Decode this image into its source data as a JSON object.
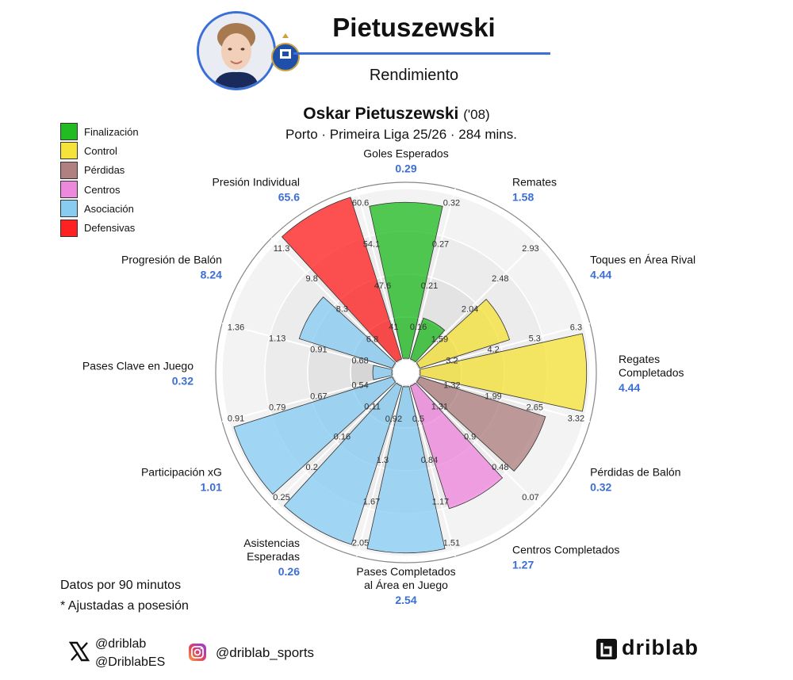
{
  "header": {
    "name": "Pietuszewski",
    "subtitle": "Rendimiento",
    "player_full": "Oskar Pietuszewski",
    "player_year": "('08)",
    "team_line": "Porto · Primeira Liga 25/26 · 284 mins."
  },
  "legend": [
    {
      "label": "Finalización",
      "color": "#22bb22"
    },
    {
      "label": "Control",
      "color": "#f5e23a"
    },
    {
      "label": "Pérdidas",
      "color": "#b08080"
    },
    {
      "label": "Centros",
      "color": "#ee88dd"
    },
    {
      "label": "Asociación",
      "color": "#88ccf2"
    },
    {
      "label": "Defensivas",
      "color": "#ff2222"
    }
  ],
  "notes": {
    "per90": "Datos por 90 minutos",
    "adjusted": "* Ajustadas a posesión"
  },
  "footer": {
    "x_handle_1": "@driblab",
    "x_handle_2": "@DriblabES",
    "instagram": "@driblab_sports",
    "brand": "driblab"
  },
  "chart_data": {
    "type": "polar-bar",
    "categories": [
      "Goles Esperados",
      "Remates",
      "Toques en Área Rival",
      "Regates Completados",
      "Pérdidas de Balón",
      "Centros Completados",
      "Pases Completados al Área en Juego",
      "Asistencias Esperadas",
      "Participación xG",
      "Pases Clave en Juego",
      "Progresión de Balón",
      "Presión Individual"
    ],
    "series": [
      {
        "values": [
          0.29,
          1.58,
          4.44,
          4.44,
          0.32,
          1.27,
          2.54,
          0.26,
          1.01,
          0.32,
          8.24,
          65.6
        ],
        "percentile_fill": [
          0.92,
          0.26,
          0.56,
          0.98,
          0.78,
          0.76,
          0.98,
          0.98,
          0.98,
          0.12,
          0.58,
          1.0
        ],
        "groups": [
          "Finalización",
          "Finalización",
          "Control",
          "Control",
          "Pérdidas",
          "Centros",
          "Asociación",
          "Asociación",
          "Asociación",
          "Asociación",
          "Asociación",
          "Defensivas"
        ]
      }
    ],
    "display_names": [
      [
        "Goles Esperados"
      ],
      [
        "Remates"
      ],
      [
        "Toques en Área Rival"
      ],
      [
        "Regates",
        "Completados"
      ],
      [
        "Pérdidas de Balón"
      ],
      [
        "Centros Completados"
      ],
      [
        "Pases Completados",
        "al Área en Juego"
      ],
      [
        "Asistencias",
        "Esperadas"
      ],
      [
        "Participación xG"
      ],
      [
        "Pases Clave en Juego"
      ],
      [
        "Progresión de Balón"
      ],
      [
        "Presión Individual"
      ]
    ],
    "display_values": [
      "0.29",
      "1.58",
      "4.44",
      "4.44",
      "0.32",
      "1.27",
      "2.54",
      "0.26",
      "1.01",
      "0.32",
      "8.24",
      "65.6"
    ],
    "ring_ticks": [
      [
        "0.16",
        "0.21",
        "0.27",
        "0.32"
      ],
      [
        "1.59",
        "2.04",
        "2.48",
        "2.93"
      ],
      [
        "3.2",
        "4.2",
        "5.3",
        "6.3"
      ],
      [
        "1.32",
        "1.99",
        "2.65",
        "3.32"
      ],
      [
        "1.31",
        "0.9",
        "0.48",
        "0.07"
      ],
      [
        "0.5",
        "0.84",
        "1.17",
        "1.51"
      ],
      [
        "0.92",
        "1.3",
        "1.67",
        "2.05"
      ],
      [
        "0.11",
        "0.16",
        "0.2",
        "0.25"
      ],
      [
        "0.54",
        "0.67",
        "0.79",
        "0.91"
      ],
      [
        "0.68",
        "0.91",
        "1.13",
        "1.36"
      ],
      [
        "6.8",
        "8.3",
        "9.8",
        "11.3"
      ],
      [
        "41",
        "47.6",
        "54.1",
        "60.6"
      ]
    ]
  }
}
